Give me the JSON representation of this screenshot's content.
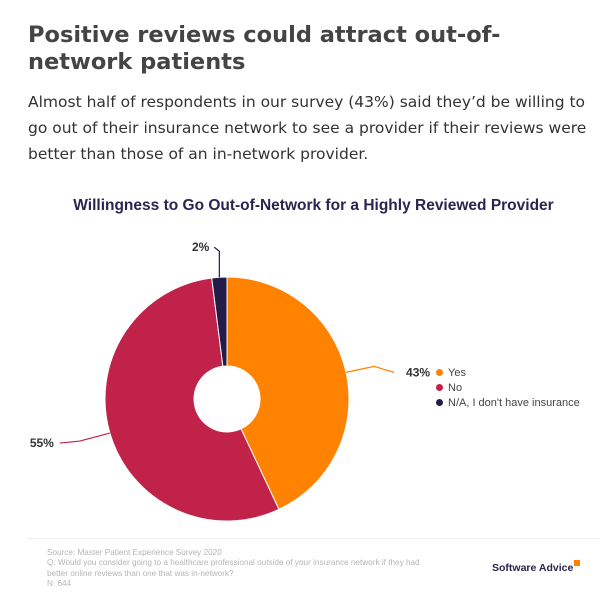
{
  "article": {
    "headline": "Positive reviews could attract out-of-network patients",
    "intro": "Almost half of respondents in our survey (43%) said they’d be willing to go out of their insurance network to see a provider if their reviews were better than those of an in-network provider."
  },
  "chart_data": {
    "type": "pie",
    "title": "Willingness to Go Out-of-Network for a Highly Reviewed Provider",
    "donut": true,
    "legend_position": "right",
    "slices": [
      {
        "label": "Yes",
        "value": 43,
        "display": "43%",
        "color": "#ff8200"
      },
      {
        "label": "No",
        "value": 55,
        "display": "55%",
        "color": "#c0224a"
      },
      {
        "label": "N/A, I don't have insurance",
        "value": 2,
        "display": "2%",
        "color": "#231c48"
      }
    ]
  },
  "footer": {
    "source_lines": [
      "Source: Master Patient Experience Survey 2020",
      "Q: Would you consider going to a healthcare professional outside of your insurance network if they had",
      "better online reviews than one that was in-network?",
      "N: 644"
    ],
    "brand": "Software Advice"
  }
}
